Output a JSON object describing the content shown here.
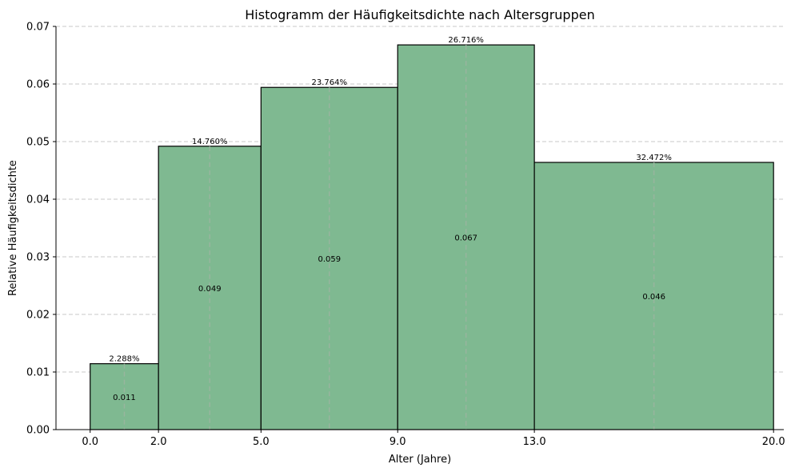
{
  "chart_data": {
    "type": "bar",
    "title": "Histogramm der Häufigkeitsdichte nach Altersgruppen",
    "xlabel": "Alter (Jahre)",
    "ylabel": "Relative Häufigkeitsdichte",
    "xlim": [
      -1.0,
      20.3
    ],
    "ylim": [
      0,
      0.07
    ],
    "x_ticks": [
      0.0,
      2.0,
      5.0,
      9.0,
      13.0,
      20.0
    ],
    "x_tick_labels": [
      "0.0",
      "2.0",
      "5.0",
      "9.0",
      "13.0",
      "20.0"
    ],
    "y_ticks": [
      0.0,
      0.01,
      0.02,
      0.03,
      0.04,
      0.05,
      0.06,
      0.07
    ],
    "y_tick_labels": [
      "0.00",
      "0.01",
      "0.02",
      "0.03",
      "0.04",
      "0.05",
      "0.06",
      "0.07"
    ],
    "bins": [
      {
        "start": 0.0,
        "end": 2.0,
        "density": 0.01144,
        "value_label": "0.011",
        "percent_label": "2.288%"
      },
      {
        "start": 2.0,
        "end": 5.0,
        "density": 0.0492,
        "value_label": "0.049",
        "percent_label": "14.760%"
      },
      {
        "start": 5.0,
        "end": 9.0,
        "density": 0.05941,
        "value_label": "0.059",
        "percent_label": "23.764%"
      },
      {
        "start": 9.0,
        "end": 13.0,
        "density": 0.06679,
        "value_label": "0.067",
        "percent_label": "26.716%"
      },
      {
        "start": 13.0,
        "end": 20.0,
        "density": 0.04639,
        "value_label": "0.046",
        "percent_label": "32.472%"
      }
    ],
    "grid": "y-dashed",
    "bar_color": "#7fb991",
    "bar_edge_color": "#000000",
    "center_line_color": "#98b59e",
    "grid_color": "#c8c8c8"
  }
}
